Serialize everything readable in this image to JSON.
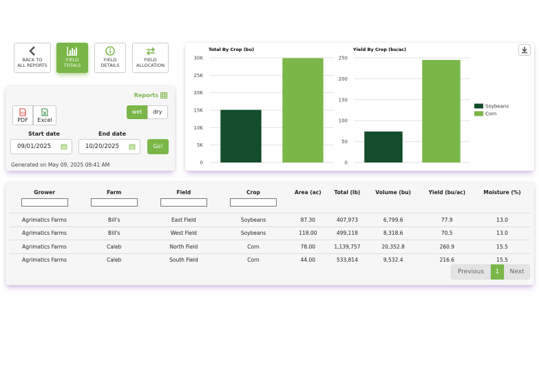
{
  "nav": [
    {
      "lines": [
        "BACK TO",
        "ALL REPORTS"
      ]
    },
    {
      "lines": [
        "FIELD",
        "TOTALS"
      ]
    },
    {
      "lines": [
        "FIELD",
        "DETAILS"
      ]
    },
    {
      "lines": [
        "FIELD",
        "ALLOCATION"
      ]
    }
  ],
  "filters": {
    "reports_link": "Reports",
    "export": [
      "PDF",
      "Excel"
    ],
    "moisture": [
      "wet",
      "dry"
    ],
    "start_label": "Start date",
    "start_value": "09/01/2025",
    "end_label": "End date",
    "end_value": "10/20/2025",
    "go": "Go!",
    "generated": "Generated on May 09, 2025 09:41 AM"
  },
  "chart_data": [
    {
      "type": "bar",
      "title": "Total By Crop (bu)",
      "values": [
        15100,
        29900
      ],
      "colors": [
        "#134d2c",
        "#7ab648"
      ],
      "ylim": [
        0,
        30000
      ],
      "yticks": [
        0,
        {
          "value": 5000,
          "label": "5K"
        },
        {
          "value": 10000,
          "label": "10K"
        },
        {
          "value": 15000,
          "label": "15K"
        },
        {
          "value": 20000,
          "label": "20K"
        },
        {
          "value": 25000,
          "label": "25K"
        },
        {
          "value": 30000,
          "label": "30K"
        }
      ],
      "grid": true
    },
    {
      "type": "bar",
      "title": "Yield By Crop (bu/ac)",
      "series": [
        {
          "name": "Soybeans",
          "color": "#134d2c",
          "values": [
            74
          ]
        },
        {
          "name": "Corn",
          "color": "#7ab648",
          "values": [
            245
          ]
        }
      ],
      "ylim": [
        0,
        250
      ],
      "yticks": [
        0,
        50,
        100,
        150,
        200,
        250
      ],
      "grid": true,
      "legend": "right"
    }
  ],
  "table": {
    "headers": [
      "Grower",
      "Farm",
      "Field",
      "Crop",
      "Area (ac)",
      "Total (lb)",
      "Volume (bu)",
      "Yield (bu/ac)",
      "Moisture (%)"
    ],
    "rows": [
      [
        "Agrimatics Farms",
        "Bill's",
        "East Field",
        "Soybeans",
        "87.30",
        "407,973",
        "6,799.6",
        "77.9",
        "13.0"
      ],
      [
        "Agrimatics Farms",
        "Bill's",
        "West Field",
        "Soybeans",
        "118.00",
        "499,118",
        "8,318.6",
        "70.5",
        "13.0"
      ],
      [
        "Agrimatics Farms",
        "Caleb",
        "North Field",
        "Corn",
        "78.00",
        "1,139,757",
        "20,352.8",
        "260.9",
        "15.5"
      ],
      [
        "Agrimatics Farms",
        "Caleb",
        "South Field",
        "Corn",
        "44.00",
        "533,814",
        "9,532.4",
        "216.6",
        "15.5"
      ]
    ]
  },
  "pagination": {
    "previous": "Previous",
    "page": "1",
    "next": "Next"
  }
}
